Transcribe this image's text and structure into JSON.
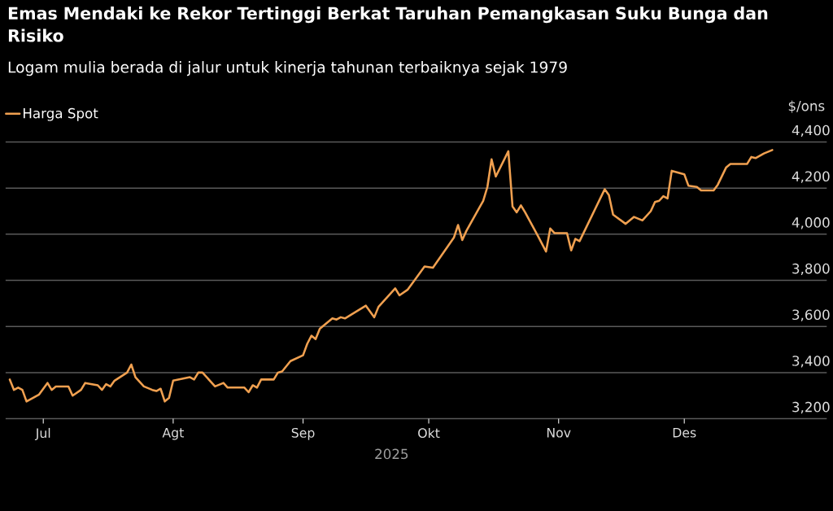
{
  "chart_data": {
    "type": "line",
    "title": "Emas Mendaki ke Rekor Tertinggi Berkat Taruhan Pemangkasan Suku Bunga dan Risiko",
    "subtitle": "Logam mulia berada di jalur untuk kinerja tahunan terbaiknya sejak 1979",
    "xlabel": "2025",
    "ylabel": "$/ons",
    "x": [
      "2025-06-23",
      "2025-06-24",
      "2025-06-25",
      "2025-06-26",
      "2025-06-27",
      "2025-06-30",
      "2025-07-02",
      "2025-07-03",
      "2025-07-04",
      "2025-07-07",
      "2025-07-08",
      "2025-07-10",
      "2025-07-11",
      "2025-07-14",
      "2025-07-15",
      "2025-07-16",
      "2025-07-17",
      "2025-07-18",
      "2025-07-21",
      "2025-07-22",
      "2025-07-23",
      "2025-07-25",
      "2025-07-27",
      "2025-07-28",
      "2025-07-29",
      "2025-07-30",
      "2025-07-31",
      "2025-08-01",
      "2025-08-05",
      "2025-08-06",
      "2025-08-07",
      "2025-08-08",
      "2025-08-11",
      "2025-08-13",
      "2025-08-14",
      "2025-08-18",
      "2025-08-19",
      "2025-08-20",
      "2025-08-21",
      "2025-08-22",
      "2025-08-25",
      "2025-08-26",
      "2025-08-27",
      "2025-08-29",
      "2025-09-01",
      "2025-09-02",
      "2025-09-03",
      "2025-09-04",
      "2025-09-05",
      "2025-09-08",
      "2025-09-09",
      "2025-09-10",
      "2025-09-11",
      "2025-09-16",
      "2025-09-18",
      "2025-09-19",
      "2025-09-23",
      "2025-09-24",
      "2025-09-26",
      "2025-09-30",
      "2025-10-02",
      "2025-10-07",
      "2025-10-08",
      "2025-10-09",
      "2025-10-10",
      "2025-10-14",
      "2025-10-15",
      "2025-10-16",
      "2025-10-17",
      "2025-10-20",
      "2025-10-21",
      "2025-10-22",
      "2025-10-23",
      "2025-10-24",
      "2025-10-27",
      "2025-10-29",
      "2025-10-30",
      "2025-10-31",
      "2025-11-03",
      "2025-11-04",
      "2025-11-05",
      "2025-11-06",
      "2025-11-10",
      "2025-11-12",
      "2025-11-13",
      "2025-11-14",
      "2025-11-17",
      "2025-11-19",
      "2025-11-21",
      "2025-11-23",
      "2025-11-24",
      "2025-11-25",
      "2025-11-26",
      "2025-11-27",
      "2025-11-28",
      "2025-12-01",
      "2025-12-02",
      "2025-12-04",
      "2025-12-05",
      "2025-12-08",
      "2025-12-09",
      "2025-12-11",
      "2025-12-12",
      "2025-12-16",
      "2025-12-17",
      "2025-12-18",
      "2025-12-20",
      "2025-12-22"
    ],
    "series": [
      {
        "name": "Harga Spot",
        "color": "#f0a050",
        "values": [
          3370,
          3325,
          3335,
          3325,
          3275,
          3305,
          3355,
          3325,
          3340,
          3340,
          3300,
          3325,
          3355,
          3345,
          3325,
          3350,
          3340,
          3365,
          3400,
          3435,
          3380,
          3340,
          3325,
          3320,
          3330,
          3275,
          3290,
          3365,
          3380,
          3370,
          3400,
          3400,
          3340,
          3355,
          3335,
          3335,
          3315,
          3345,
          3335,
          3370,
          3370,
          3400,
          3405,
          3450,
          3475,
          3525,
          3560,
          3545,
          3590,
          3635,
          3630,
          3640,
          3635,
          3690,
          3640,
          3685,
          3765,
          3735,
          3760,
          3860,
          3855,
          3985,
          4040,
          3975,
          4015,
          4145,
          4205,
          4325,
          4250,
          4360,
          4120,
          4095,
          4125,
          4095,
          3995,
          3925,
          4025,
          4005,
          4005,
          3930,
          3980,
          3970,
          4120,
          4195,
          4170,
          4085,
          4045,
          4075,
          4060,
          4100,
          4140,
          4145,
          4165,
          4155,
          4275,
          4260,
          4210,
          4205,
          4190,
          4190,
          4215,
          4290,
          4305,
          4305,
          4335,
          4330,
          4350,
          4365
        ]
      }
    ],
    "xlim": [
      "2025-06-22",
      "2026-01-04"
    ],
    "xticks": [
      {
        "value": "2025-07-01",
        "label": "Jul"
      },
      {
        "value": "2025-08-01",
        "label": "Agt"
      },
      {
        "value": "2025-09-01",
        "label": "Sep"
      },
      {
        "value": "2025-10-01",
        "label": "Okt"
      },
      {
        "value": "2025-11-01",
        "label": "Nov"
      },
      {
        "value": "2025-12-01",
        "label": "Des"
      }
    ],
    "ylim": [
      3200,
      4400
    ],
    "yticks": [
      {
        "value": 3200,
        "label": "3,200"
      },
      {
        "value": 3400,
        "label": "3,400"
      },
      {
        "value": 3600,
        "label": "3,600"
      },
      {
        "value": 3800,
        "label": "3,800"
      },
      {
        "value": 4000,
        "label": "4,000"
      },
      {
        "value": 4200,
        "label": "4,200"
      },
      {
        "value": 4400,
        "label": "4,400"
      }
    ],
    "grid": "y",
    "legend": "top left",
    "marker": "none",
    "line_style": "solid"
  }
}
